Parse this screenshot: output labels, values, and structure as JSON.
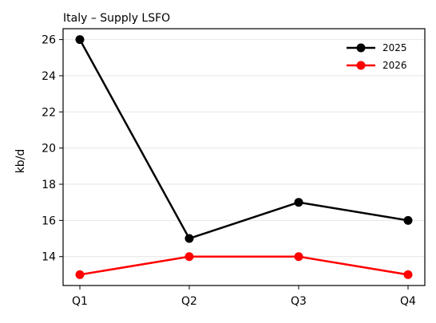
{
  "chart_data": {
    "type": "line",
    "title": "Italy – Supply LSFO",
    "xlabel": "",
    "ylabel": "kb/d",
    "categories": [
      "Q1",
      "Q2",
      "Q3",
      "Q4"
    ],
    "ylim": [
      12.4,
      26.6
    ],
    "yticks": [
      14,
      16,
      18,
      20,
      22,
      24,
      26
    ],
    "grid": "horizontal",
    "legend_position": "top-right",
    "series": [
      {
        "name": "2025",
        "color": "#000000",
        "values": [
          26,
          15,
          17,
          16
        ]
      },
      {
        "name": "2026",
        "color": "#ff0000",
        "values": [
          13,
          14,
          14,
          13
        ]
      }
    ]
  }
}
